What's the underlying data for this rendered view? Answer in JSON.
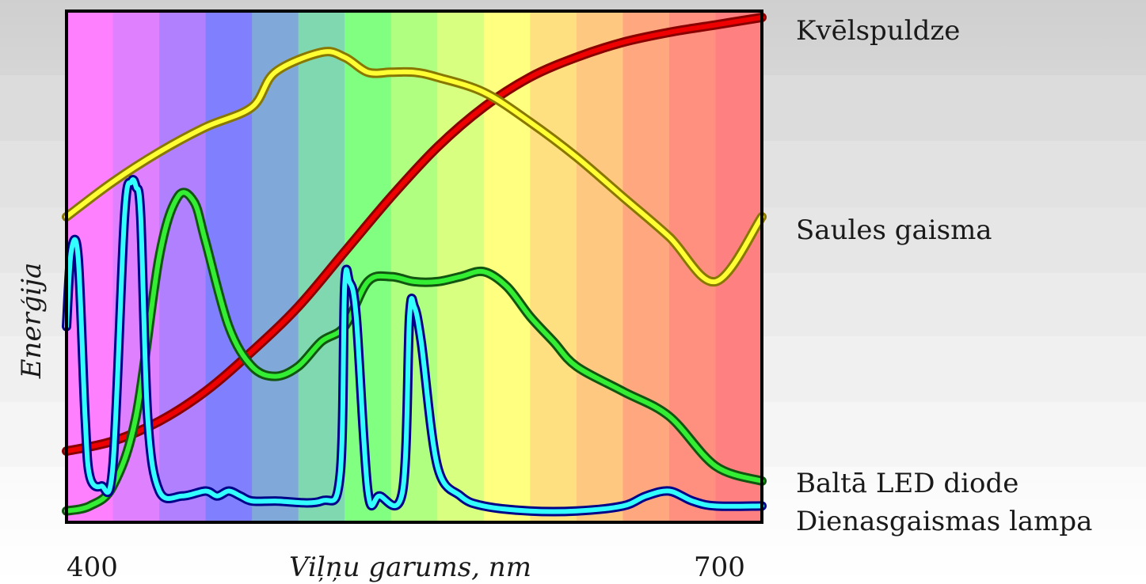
{
  "chart_data": {
    "type": "line",
    "xlabel": "Viļņu garums, nm",
    "ylabel": "Enerģija",
    "x_ticks": [
      "400",
      "700"
    ],
    "xlim": [
      400,
      700
    ],
    "ylim": [
      0,
      1
    ],
    "grid": false,
    "legend": "right",
    "spectrum_colors": [
      "#ff80ff",
      "#df80ff",
      "#b080ff",
      "#8080ff",
      "#80a8d8",
      "#80d8b0",
      "#80ff80",
      "#b0ff80",
      "#d8ff80",
      "#ffff80",
      "#ffe080",
      "#ffc880",
      "#ffa880",
      "#ff9080",
      "#ff8080"
    ],
    "series": [
      {
        "name": "Kvēlspuldze",
        "label": "Kvēlspuldze",
        "color": "#ee0000",
        "outline": "#880000",
        "x": [
          400,
          420,
          440,
          460,
          480,
          500,
          520,
          540,
          560,
          580,
          600,
          620,
          640,
          660,
          680,
          700
        ],
        "y": [
          0.13,
          0.15,
          0.19,
          0.25,
          0.33,
          0.42,
          0.53,
          0.64,
          0.74,
          0.82,
          0.88,
          0.92,
          0.95,
          0.97,
          0.985,
          1.0
        ]
      },
      {
        "name": "Saules gaisma",
        "label": "Saules gaisma",
        "color": "#ffff33",
        "outline": "#887700",
        "x": [
          400,
          420,
          440,
          460,
          480,
          490,
          510,
          520,
          530,
          540,
          550,
          560,
          580,
          600,
          620,
          640,
          660,
          680,
          700
        ],
        "y": [
          0.6,
          0.67,
          0.73,
          0.78,
          0.82,
          0.89,
          0.93,
          0.92,
          0.89,
          0.89,
          0.89,
          0.88,
          0.85,
          0.79,
          0.72,
          0.64,
          0.56,
          0.47,
          0.6
        ]
      },
      {
        "name": "Baltā LED diode",
        "label": "Baltā LED diode",
        "color": "#33ee33",
        "outline": "#115511",
        "x": [
          400,
          410,
          420,
          430,
          440,
          448,
          455,
          460,
          470,
          480,
          490,
          500,
          510,
          520,
          530,
          540,
          550,
          560,
          570,
          580,
          590,
          600,
          610,
          620,
          640,
          660,
          680,
          700
        ],
        "y": [
          0.01,
          0.02,
          0.06,
          0.2,
          0.52,
          0.64,
          0.63,
          0.55,
          0.38,
          0.3,
          0.28,
          0.3,
          0.35,
          0.38,
          0.47,
          0.48,
          0.47,
          0.47,
          0.48,
          0.49,
          0.46,
          0.4,
          0.35,
          0.3,
          0.25,
          0.2,
          0.1,
          0.07
        ]
      },
      {
        "name": "Dienasgaismas lampa",
        "label": "Dienasgaismas lampa",
        "color": "#33ffff",
        "outline": "#000088",
        "x": [
          400,
          402,
          405,
          408,
          410,
          415,
          420,
          425,
          428,
          430,
          432,
          435,
          440,
          450,
          460,
          465,
          470,
          475,
          480,
          490,
          510,
          518,
          520,
          522,
          525,
          530,
          535,
          545,
          548,
          550,
          553,
          560,
          570,
          580,
          600,
          620,
          640,
          650,
          660,
          670,
          680,
          700
        ],
        "y": [
          0.38,
          0.53,
          0.52,
          0.2,
          0.08,
          0.06,
          0.1,
          0.6,
          0.67,
          0.66,
          0.6,
          0.2,
          0.05,
          0.04,
          0.05,
          0.04,
          0.05,
          0.04,
          0.03,
          0.03,
          0.03,
          0.08,
          0.46,
          0.47,
          0.4,
          0.05,
          0.04,
          0.05,
          0.4,
          0.42,
          0.35,
          0.1,
          0.04,
          0.02,
          0.01,
          0.01,
          0.02,
          0.04,
          0.05,
          0.03,
          0.02,
          0.02
        ]
      }
    ]
  }
}
